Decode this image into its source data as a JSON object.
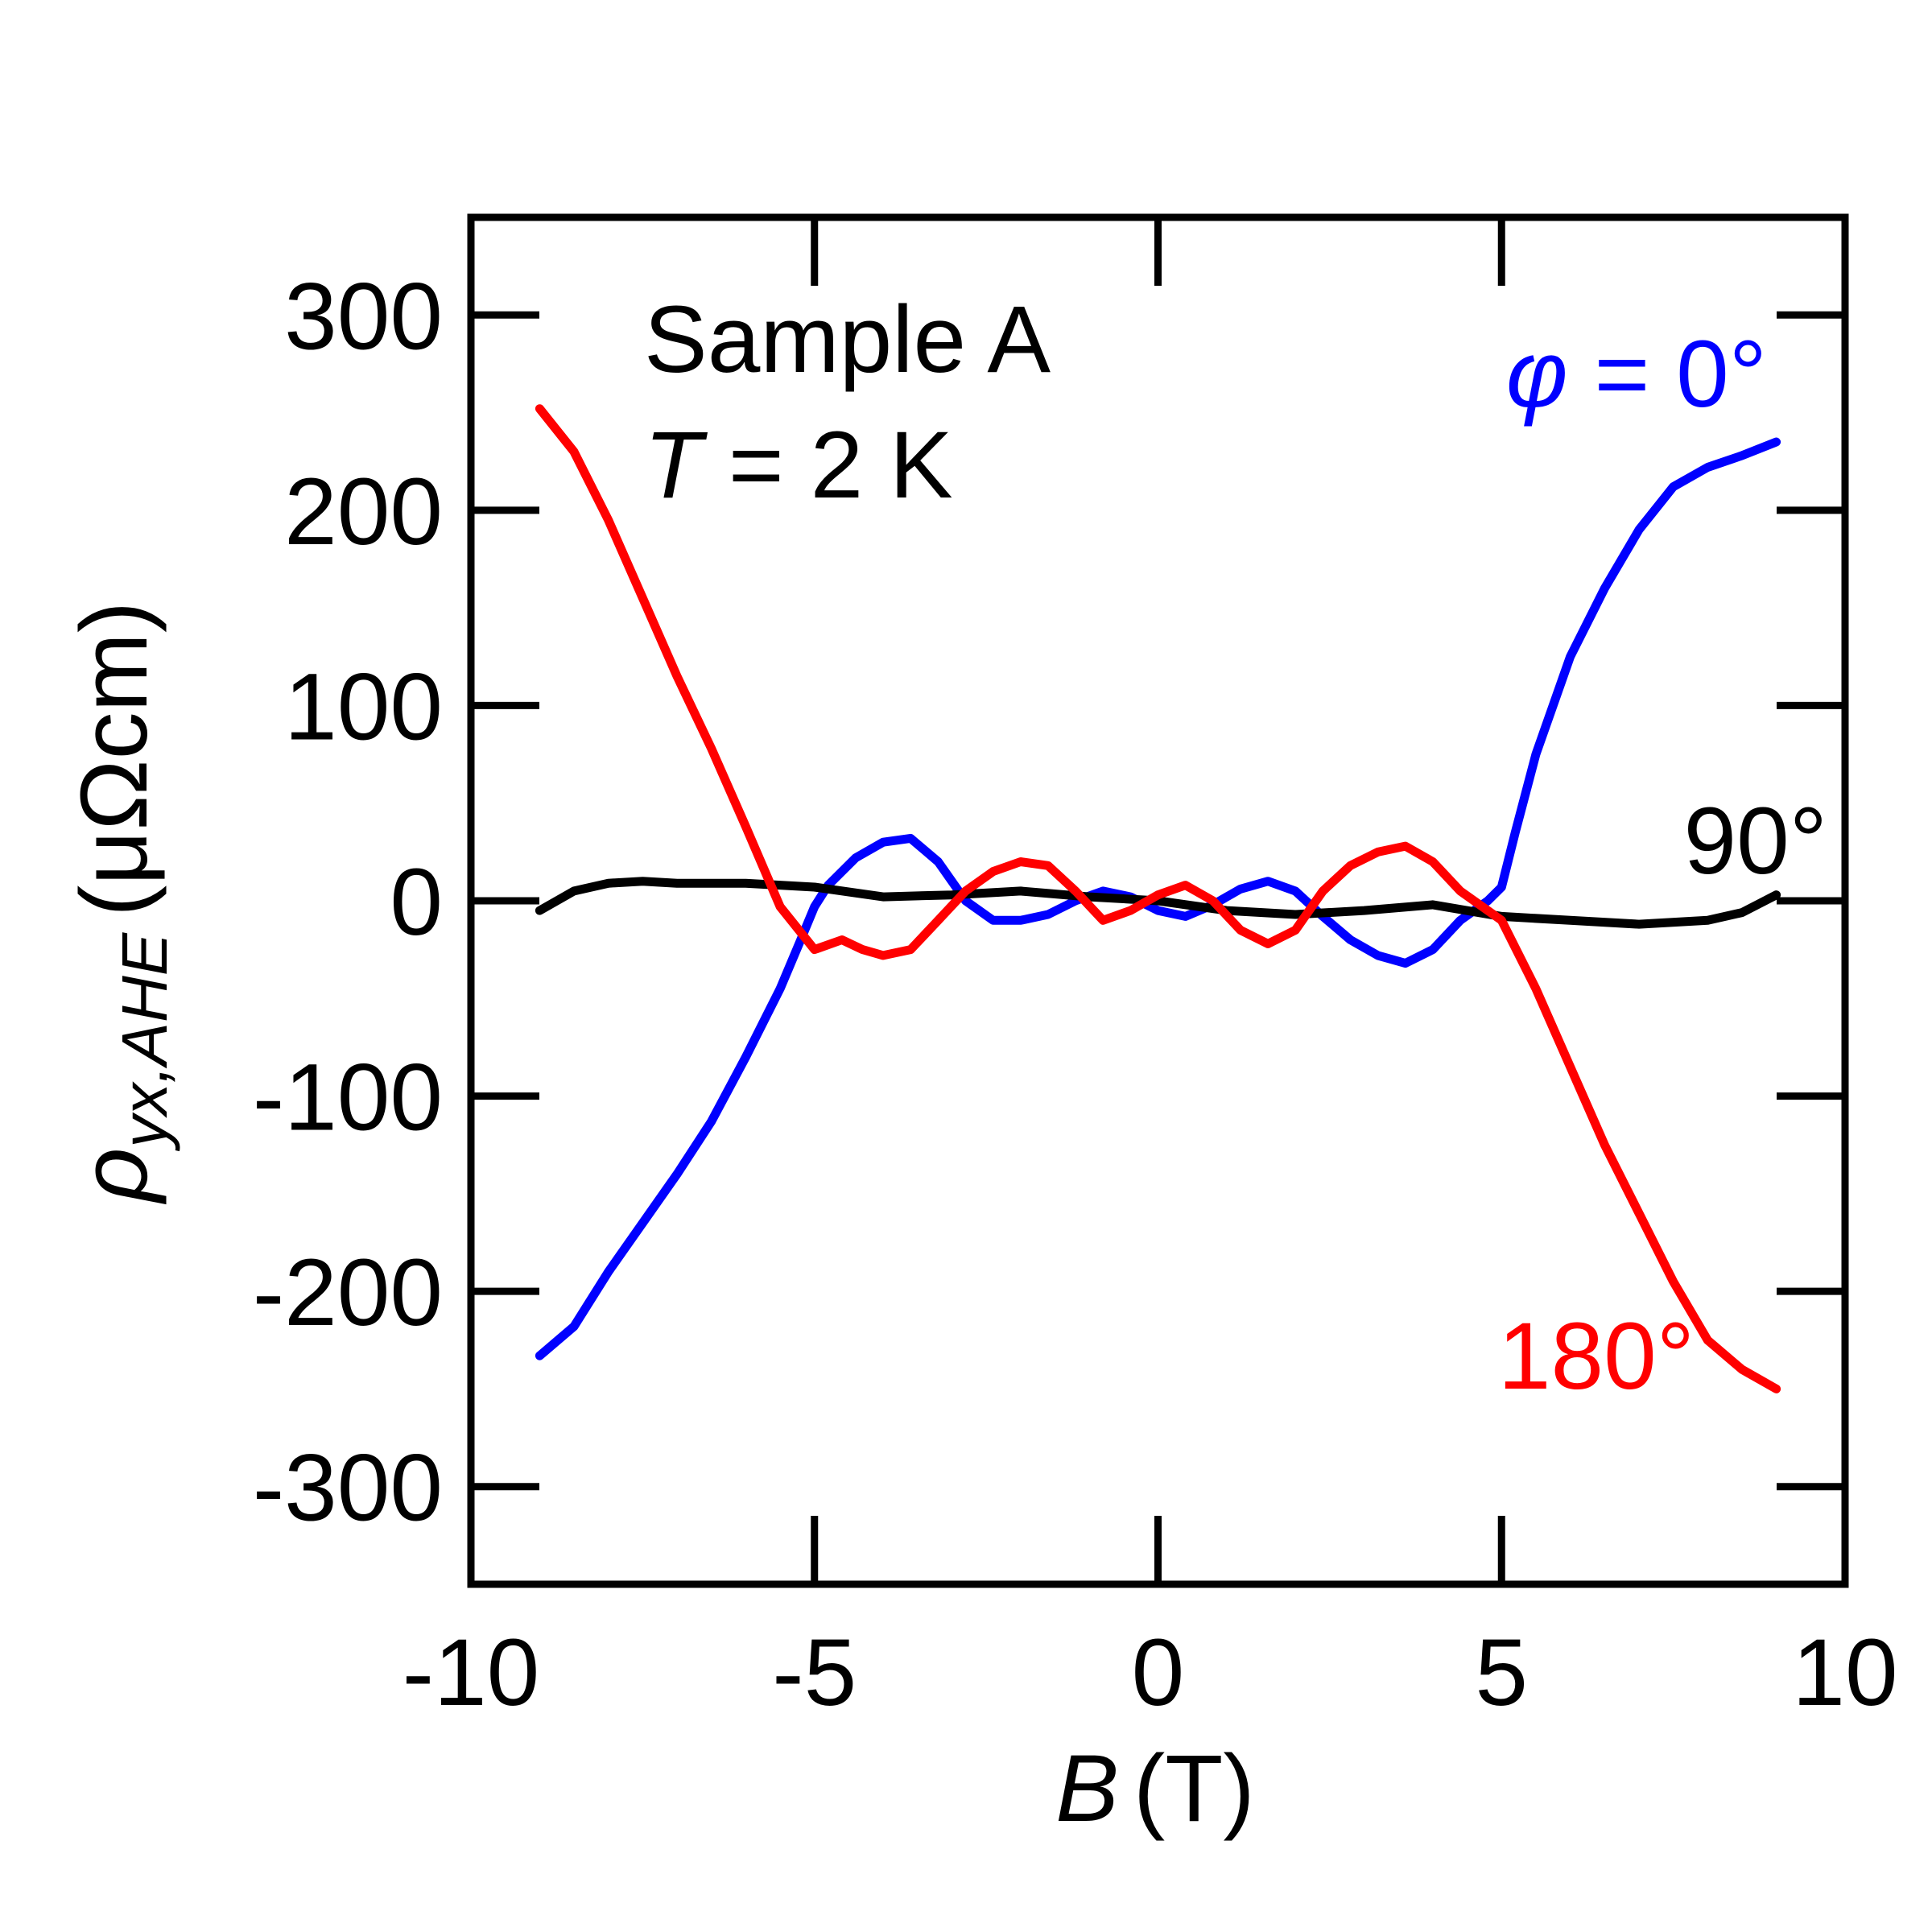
{
  "chart_data": {
    "type": "line",
    "xlabel": {
      "symbol": "B",
      "unit": "(T)"
    },
    "ylabel": {
      "symbol": "ρ",
      "subscript": "yx,AHE",
      "unit": "(μΩcm)"
    },
    "xlim": [
      -10,
      10
    ],
    "ylim": [
      -350,
      350
    ],
    "x_ticks": [
      -10,
      -5,
      0,
      5,
      10
    ],
    "x_tick_labels": [
      "-10",
      "-5",
      "0",
      "5",
      "10"
    ],
    "y_ticks": [
      -300,
      -200,
      -100,
      0,
      100,
      200,
      300
    ],
    "y_tick_labels": [
      "-300",
      "-200",
      "-100",
      "0",
      "100",
      "200",
      "300"
    ],
    "grid": false,
    "annotations": {
      "sample": "Sample A",
      "temperature_symbol": "T",
      "temperature_value": " = 2 K",
      "phi_symbol": "φ",
      "phi_value": " = 0°",
      "label_90": "90°",
      "label_180": "180°"
    },
    "series": [
      {
        "name": "φ = 0°",
        "color": "#0000ff",
        "x": [
          -9.0,
          -8.5,
          -8.0,
          -7.5,
          -7.0,
          -6.5,
          -6.0,
          -5.5,
          -5.2,
          -5.0,
          -4.8,
          -4.6,
          -4.4,
          -4.0,
          -3.6,
          -3.2,
          -2.8,
          -2.4,
          -2.0,
          -1.6,
          -1.2,
          -0.8,
          -0.4,
          0.0,
          0.4,
          0.8,
          1.2,
          1.6,
          2.0,
          2.4,
          2.8,
          3.2,
          3.6,
          4.0,
          4.4,
          4.6,
          4.8,
          5.0,
          5.2,
          5.5,
          6.0,
          6.5,
          7.0,
          7.5,
          8.0,
          8.5,
          9.0
        ],
        "y": [
          -233,
          -218,
          -190,
          -165,
          -140,
          -113,
          -80,
          -45,
          -20,
          -3,
          8,
          15,
          22,
          30,
          32,
          20,
          0,
          -10,
          -10,
          -7,
          0,
          5,
          2,
          -5,
          -8,
          -2,
          6,
          10,
          5,
          -8,
          -20,
          -28,
          -32,
          -25,
          -10,
          -5,
          0,
          7,
          35,
          75,
          125,
          160,
          190,
          212,
          222,
          228,
          235
        ]
      },
      {
        "name": "90°",
        "color": "#000000",
        "x": [
          -9.0,
          -8.5,
          -8.0,
          -7.5,
          -7.0,
          -6.0,
          -5.0,
          -4.0,
          -3.0,
          -2.0,
          -1.0,
          0.0,
          1.0,
          2.0,
          3.0,
          4.0,
          5.0,
          6.0,
          7.0,
          8.0,
          8.5,
          9.0
        ],
        "y": [
          -5,
          5,
          9,
          10,
          9,
          9,
          7,
          2,
          3,
          5,
          2,
          0,
          -5,
          -7,
          -5,
          -2,
          -8,
          -10,
          -12,
          -10,
          -6,
          3
        ]
      },
      {
        "name": "180°",
        "color": "#ff0000",
        "x": [
          -9.0,
          -8.5,
          -8.0,
          -7.5,
          -7.0,
          -6.5,
          -6.0,
          -5.5,
          -5.0,
          -4.6,
          -4.3,
          -4.0,
          -3.6,
          -3.2,
          -2.8,
          -2.4,
          -2.0,
          -1.6,
          -1.2,
          -0.8,
          -0.4,
          0.0,
          0.4,
          0.8,
          1.2,
          1.6,
          2.0,
          2.4,
          2.8,
          3.2,
          3.6,
          4.0,
          4.4,
          4.8,
          5.0,
          5.5,
          6.0,
          6.5,
          7.0,
          7.5,
          8.0,
          8.5,
          9.0
        ],
        "y": [
          252,
          230,
          195,
          155,
          115,
          78,
          38,
          -3,
          -25,
          -20,
          -25,
          -28,
          -25,
          -10,
          5,
          15,
          20,
          18,
          5,
          -10,
          -5,
          3,
          8,
          0,
          -15,
          -22,
          -15,
          5,
          18,
          25,
          28,
          20,
          5,
          -5,
          -10,
          -45,
          -85,
          -125,
          -160,
          -195,
          -225,
          -240,
          -250
        ]
      }
    ]
  }
}
